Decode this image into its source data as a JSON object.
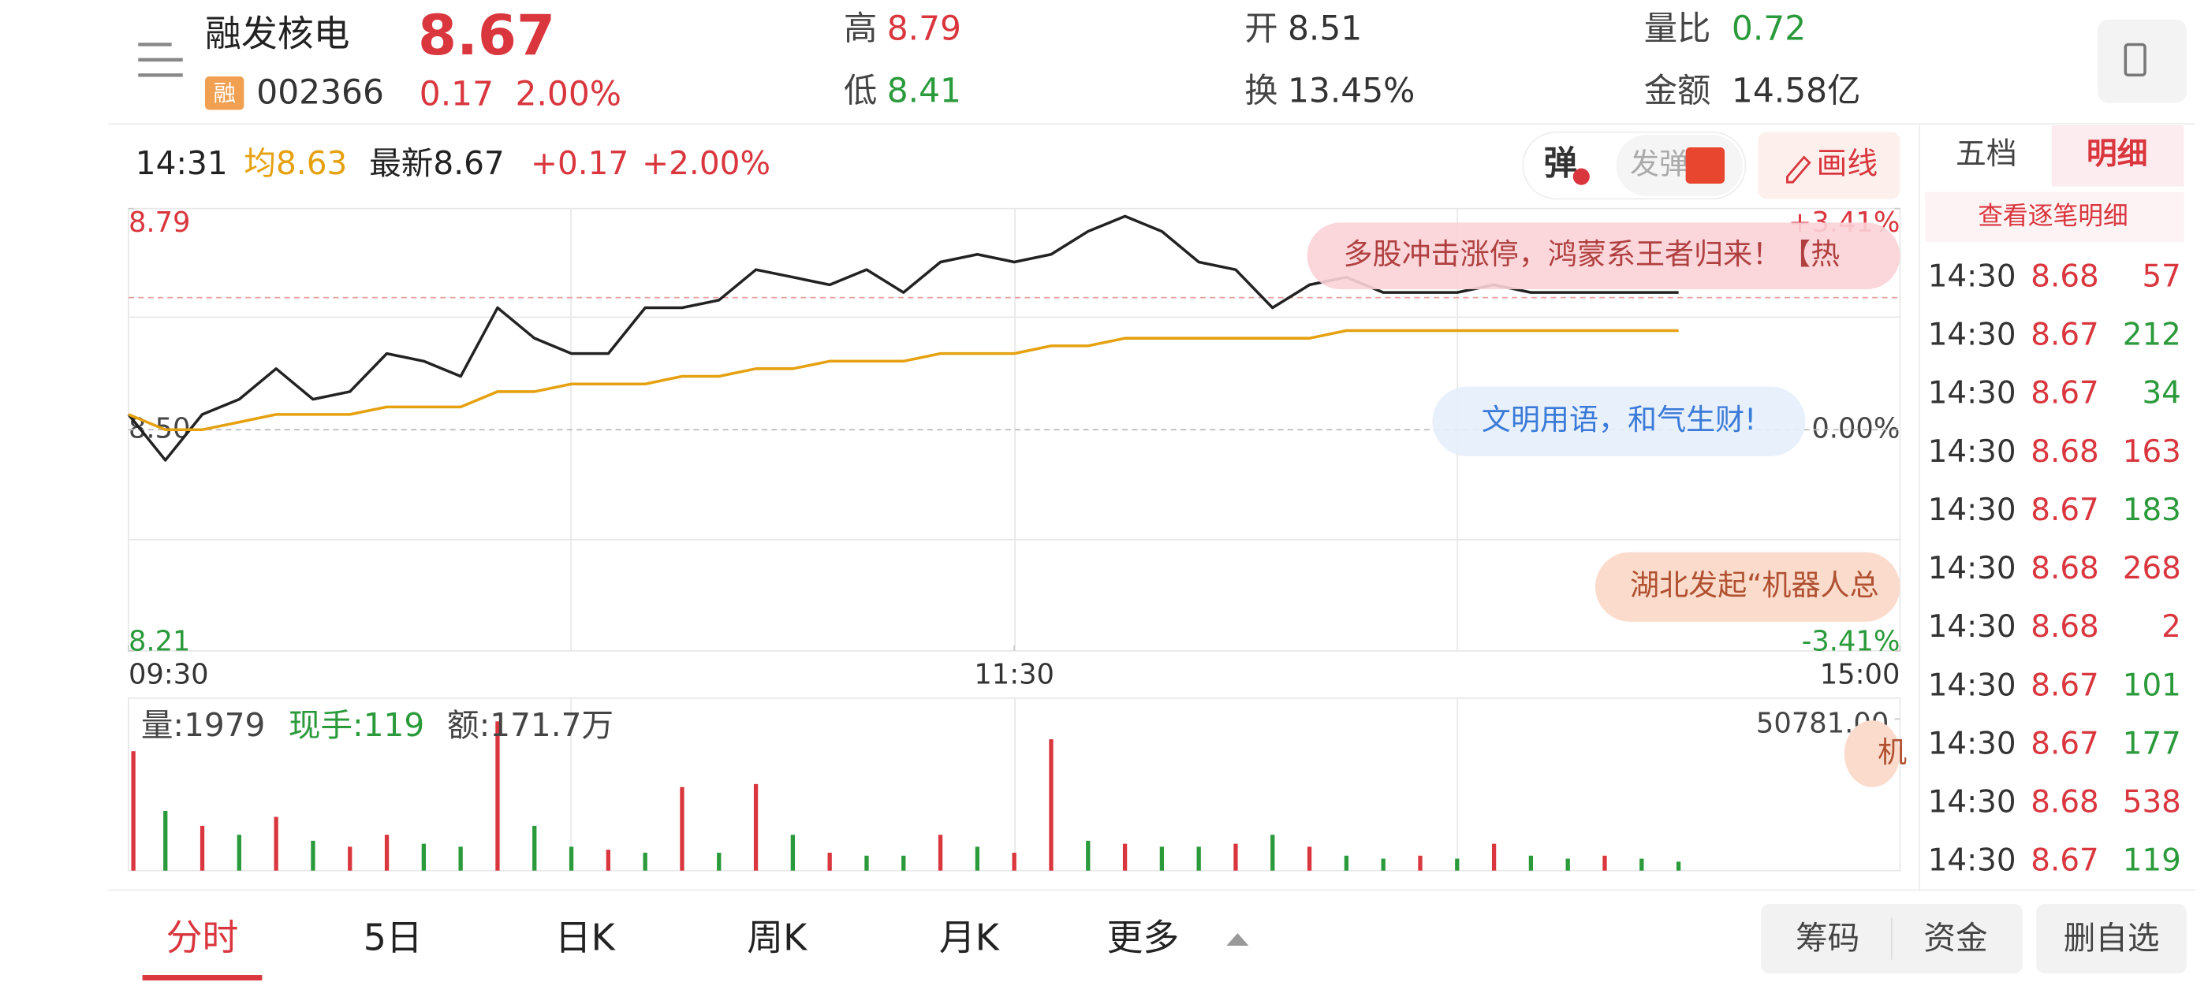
{
  "header": {
    "name": "融发核电",
    "badge": "融",
    "code": "002366",
    "price": "8.67",
    "change": "0.17",
    "change_pct": "2.00%",
    "high_label": "高",
    "high": "8.79",
    "low_label": "低",
    "low": "8.41",
    "open_label": "开",
    "open": "8.51",
    "turnover_label": "换",
    "turnover": "13.45%",
    "ratio_label": "量比",
    "ratio": "0.72",
    "amount_label": "金额",
    "amount": "14.58亿"
  },
  "info_bar": {
    "time": "14:31",
    "avg": "均8.63",
    "latest": "最新8.67",
    "change": "+0.17",
    "change_pct": "+2.00%"
  },
  "toolbar": {
    "danmaku": "弹",
    "send": "发弹",
    "draw": "画线"
  },
  "danmaku": [
    "多股冲击涨停，鸿蒙系王者归来！【热",
    "文明用语，和气生财!",
    "湖北发起“机器人总",
    "机"
  ],
  "chart_data": [
    {
      "type": "line",
      "x": [
        "09:30",
        "09:35",
        "09:40",
        "09:45",
        "09:50",
        "09:55",
        "10:00",
        "10:05",
        "10:10",
        "10:15",
        "10:20",
        "10:25",
        "10:30",
        "10:35",
        "10:40",
        "10:45",
        "10:50",
        "10:55",
        "11:00",
        "11:05",
        "11:10",
        "11:15",
        "11:20",
        "11:25",
        "11:30",
        "13:05",
        "13:10",
        "13:15",
        "13:20",
        "13:25",
        "13:30",
        "13:35",
        "13:40",
        "13:45",
        "13:50",
        "13:55",
        "14:00",
        "14:05",
        "14:10",
        "14:15",
        "14:20",
        "14:25",
        "14:30"
      ],
      "series": [
        {
          "color": "#222222",
          "values": [
            8.52,
            8.46,
            8.52,
            8.54,
            8.58,
            8.54,
            8.55,
            8.6,
            8.59,
            8.57,
            8.66,
            8.62,
            8.6,
            8.6,
            8.66,
            8.66,
            8.67,
            8.71,
            8.7,
            8.69,
            8.71,
            8.68,
            8.72,
            8.73,
            8.72,
            8.73,
            8.76,
            8.78,
            8.76,
            8.72,
            8.71,
            8.66,
            8.69,
            8.7,
            8.68,
            8.68,
            8.68,
            8.69,
            8.68,
            8.68,
            8.68,
            8.68,
            8.68
          ]
        },
        {
          "color": "#e5a10f",
          "values": [
            8.52,
            8.5,
            8.5,
            8.51,
            8.52,
            8.52,
            8.52,
            8.53,
            8.53,
            8.53,
            8.55,
            8.55,
            8.56,
            8.56,
            8.56,
            8.57,
            8.57,
            8.58,
            8.58,
            8.59,
            8.59,
            8.59,
            8.6,
            8.6,
            8.6,
            8.61,
            8.61,
            8.62,
            8.62,
            8.62,
            8.62,
            8.62,
            8.62,
            8.63,
            8.63,
            8.63,
            8.63,
            8.63,
            8.63,
            8.63,
            8.63,
            8.63,
            8.63
          ]
        }
      ],
      "ylim": [
        8.21,
        8.79
      ],
      "yticks": [
        8.21,
        {
          "value": 8.5,
          "label": "8.50"
        },
        8.79
      ],
      "y2lim": [
        -3.41,
        3.41
      ],
      "y2ticks": [
        {
          "value": -3.41,
          "label": "-3.41%"
        },
        {
          "value": 0,
          "label": "0.00%"
        },
        {
          "value": 3.41,
          "label": "+3.41%"
        }
      ],
      "xticks": [
        "09:30",
        "11:30",
        "15:00"
      ]
    },
    {
      "type": "bar",
      "x": [
        "09:30",
        "09:35",
        "09:40",
        "09:45",
        "09:50",
        "09:55",
        "10:00",
        "10:05",
        "10:10",
        "10:15",
        "10:20",
        "10:25",
        "10:30",
        "10:35",
        "10:40",
        "10:45",
        "10:50",
        "10:55",
        "11:00",
        "11:05",
        "11:10",
        "11:15",
        "11:20",
        "11:25",
        "11:30",
        "13:05",
        "13:10",
        "13:15",
        "13:20",
        "13:25",
        "13:30",
        "13:35",
        "13:40",
        "13:45",
        "13:50",
        "13:55",
        "14:00",
        "14:05",
        "14:10",
        "14:15",
        "14:20",
        "14:25",
        "14:30"
      ],
      "values": [
        40000,
        20000,
        15000,
        12000,
        18000,
        10000,
        8000,
        12000,
        9000,
        8000,
        50000,
        15000,
        8000,
        7000,
        6000,
        28000,
        6000,
        29000,
        12000,
        6000,
        5000,
        5000,
        12000,
        8000,
        6000,
        44000,
        10000,
        9000,
        8000,
        8000,
        9000,
        12000,
        8000,
        5000,
        4000,
        5000,
        4000,
        9000,
        5000,
        4000,
        5000,
        4000,
        3000
      ],
      "colors": [
        "#d9363e",
        "#2a9a3a",
        "#d9363e",
        "#2a9a3a",
        "#d9363e",
        "#2a9a3a",
        "#d9363e",
        "#d9363e",
        "#2a9a3a",
        "#2a9a3a",
        "#d9363e",
        "#2a9a3a",
        "#2a9a3a",
        "#d9363e",
        "#2a9a3a",
        "#d9363e",
        "#2a9a3a",
        "#d9363e",
        "#2a9a3a",
        "#d9363e",
        "#2a9a3a",
        "#2a9a3a",
        "#d9363e",
        "#2a9a3a",
        "#d9363e",
        "#d9363e",
        "#2a9a3a",
        "#d9363e",
        "#2a9a3a",
        "#2a9a3a",
        "#d9363e",
        "#2a9a3a",
        "#d9363e",
        "#2a9a3a",
        "#2a9a3a",
        "#d9363e",
        "#2a9a3a",
        "#d9363e",
        "#2a9a3a",
        "#2a9a3a",
        "#d9363e",
        "#2a9a3a",
        "#2a9a3a"
      ],
      "ylim": [
        0,
        50781
      ],
      "yticks": [
        {
          "value": 50781,
          "label": "50781.00"
        }
      ],
      "volume": "量:1979",
      "hand": "现手:119",
      "amount": "额:171.7万"
    }
  ],
  "side_panel": {
    "tab1": "五档",
    "tab2": "明细",
    "link": "查看逐笔明细",
    "rows": [
      [
        "14:30",
        8.68,
        57
      ],
      [
        "14:30",
        8.67,
        212
      ],
      [
        "14:30",
        8.67,
        34
      ],
      [
        "14:30",
        8.68,
        163
      ],
      [
        "14:30",
        8.67,
        183
      ],
      [
        "14:30",
        8.68,
        268
      ],
      [
        "14:30",
        8.68,
        2
      ],
      [
        "14:30",
        8.67,
        101
      ],
      [
        "14:30",
        8.67,
        177
      ],
      [
        "14:30",
        8.68,
        538
      ],
      [
        "14:30",
        8.67,
        119
      ]
    ],
    "price_color": "#d9363e",
    "volume_colors": [
      "#d9363e",
      "#2a9a3a",
      "#2a9a3a",
      "#d9363e",
      "#2a9a3a",
      "#d9363e",
      "#d9363e",
      "#2a9a3a",
      "#2a9a3a",
      "#d9363e",
      "#2a9a3a"
    ]
  },
  "tabs": [
    "分时",
    "5日",
    "日K",
    "周K",
    "月K",
    "更多"
  ],
  "buttons": [
    "筹码",
    "资金",
    "删自选"
  ]
}
